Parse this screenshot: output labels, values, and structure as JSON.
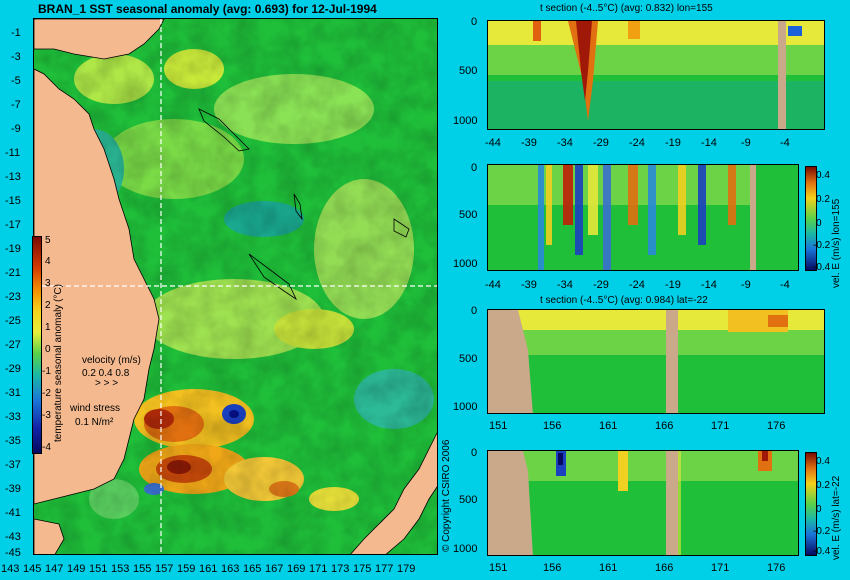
{
  "map": {
    "title": "BRAN_1 SST seasonal anomaly (avg: 0.693) for 12-Jul-1994",
    "lat_labels": [
      "-1",
      "-3",
      "-5",
      "-7",
      "-9",
      "-11",
      "-13",
      "-15",
      "-17",
      "-19",
      "-21",
      "-23",
      "-25",
      "-27",
      "-29",
      "-31",
      "-33",
      "-35",
      "-37",
      "-39",
      "-41",
      "-43",
      "-45"
    ],
    "lon_labels": [
      "143",
      "145",
      "147",
      "149",
      "151",
      "153",
      "155",
      "157",
      "159",
      "161",
      "163",
      "165",
      "167",
      "169",
      "171",
      "173",
      "175",
      "177",
      "179"
    ],
    "colorbar_label": "temperature seasonal anomaly (°C)",
    "colorbar_ticks": [
      "5",
      "4",
      "3",
      "2",
      "1",
      "0",
      "-1",
      "-2",
      "-3",
      "-4"
    ],
    "velocity_label": "velocity (m/s)",
    "velocity_values": "0.2 0.4 0.8",
    "wind_label": "wind stress",
    "wind_value": "0.1 N/m²",
    "crosshair_lon": 155,
    "crosshair_lat": -22,
    "copyright": "© Copyright CSIRO 2006"
  },
  "panels": [
    {
      "title": "t section (-4..5°C) (avg: 0.832) lon=155",
      "x_labels": [
        "-44",
        "-39",
        "-34",
        "-29",
        "-24",
        "-19",
        "-14",
        "-9",
        "-4"
      ],
      "y_labels": [
        "0",
        "500",
        "1000"
      ],
      "side_label": ""
    },
    {
      "title": "",
      "x_labels": [
        "-44",
        "-39",
        "-34",
        "-29",
        "-24",
        "-19",
        "-14",
        "-9",
        "-4"
      ],
      "y_labels": [
        "0",
        "500",
        "1000"
      ],
      "side_label": "vel. E (m/s) lon=155",
      "colorbar_ticks": [
        "0.4",
        "0.2",
        "0",
        "-0.2",
        "-0.4"
      ]
    },
    {
      "title": "t section (-4..5°C) (avg: 0.984) lat=-22",
      "x_labels": [
        "151",
        "156",
        "161",
        "166",
        "171",
        "176"
      ],
      "y_labels": [
        "0",
        "500",
        "1000"
      ],
      "side_label": ""
    },
    {
      "title": "",
      "x_labels": [
        "151",
        "156",
        "161",
        "166",
        "171",
        "176"
      ],
      "y_labels": [
        "0",
        "500",
        "1000"
      ],
      "side_label": "vel. E (m/s) lat=-22",
      "colorbar_ticks": [
        "0.4",
        "0.2",
        "0",
        "-0.2",
        "-0.4"
      ]
    }
  ],
  "colors": {
    "background": "#00cfe8",
    "land": "#f4b98f",
    "section_land": "#c9a98a",
    "ocean_base": "#1fbf3a"
  }
}
